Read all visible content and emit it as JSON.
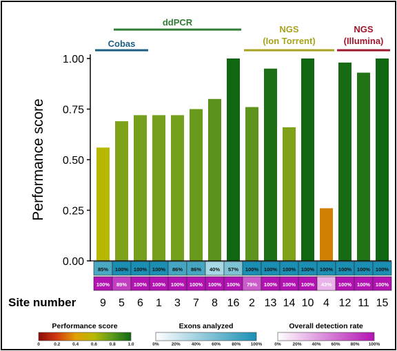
{
  "chart_data": {
    "type": "bar",
    "ylabel": "Performance score",
    "xlabel": "Site number",
    "ylim": [
      0,
      1.0
    ],
    "yticks": [
      "0.00",
      "0.25",
      "0.50",
      "0.75",
      "1.00"
    ],
    "ytick_values": [
      0,
      0.25,
      0.5,
      0.75,
      1.0
    ],
    "categories": [
      "9",
      "5",
      "6",
      "1",
      "3",
      "7",
      "8",
      "16",
      "2",
      "13",
      "14",
      "10",
      "4",
      "12",
      "11",
      "15"
    ],
    "values": [
      0.56,
      0.69,
      0.72,
      0.72,
      0.72,
      0.75,
      0.8,
      1.0,
      0.76,
      0.95,
      0.66,
      1.0,
      0.26,
      0.98,
      0.93,
      1.0
    ],
    "bar_colors": [
      "#b8b800",
      "#7fa21a",
      "#74a01c",
      "#74a01c",
      "#74a01c",
      "#6a9a1c",
      "#5b921c",
      "#0f6712",
      "#5f941c",
      "#1c6f14",
      "#7fa21a",
      "#0f6712",
      "#d08000",
      "#166b13",
      "#217316",
      "#0f6712"
    ],
    "exons_analyzed": [
      "85%",
      "100%",
      "100%",
      "100%",
      "86%",
      "86%",
      "40%",
      "57%",
      "100%",
      "100%",
      "100%",
      "100%",
      "100%",
      "100%",
      "100%",
      "100%"
    ],
    "exons_colors": [
      "#4aa8c3",
      "#1a8fb3",
      "#1a8fb3",
      "#1a8fb3",
      "#46a6c2",
      "#46a6c2",
      "#a6d8e6",
      "#7ec2d6",
      "#1a8fb3",
      "#1a8fb3",
      "#1a8fb3",
      "#1a8fb3",
      "#1a8fb3",
      "#1a8fb3",
      "#1a8fb3",
      "#1a8fb3"
    ],
    "detection_rate": [
      "100%",
      "89%",
      "100%",
      "100%",
      "100%",
      "100%",
      "100%",
      "100%",
      "79%",
      "100%",
      "100%",
      "100%",
      "43%",
      "100%",
      "100%",
      "100%"
    ],
    "detection_colors": [
      "#b313b3",
      "#c43ec4",
      "#b313b3",
      "#b313b3",
      "#b313b3",
      "#b313b3",
      "#b313b3",
      "#b313b3",
      "#cc5ccc",
      "#b313b3",
      "#b313b3",
      "#b313b3",
      "#eab3ea",
      "#b313b3",
      "#b313b3",
      "#b313b3"
    ],
    "groups": [
      {
        "label": "Cobas",
        "label2": "",
        "start": 0,
        "end": 2,
        "color": "#1b5e82"
      },
      {
        "label": "ddPCR",
        "label2": "",
        "start": 1,
        "end": 7,
        "color": "#2e7d32"
      },
      {
        "label": "NGS",
        "label2": "(Ion Torrent)",
        "start": 8,
        "end": 12,
        "color": "#a8a31c"
      },
      {
        "label": "NGS",
        "label2": "(Illumina)",
        "start": 13,
        "end": 15,
        "color": "#a0162d"
      }
    ],
    "legends": [
      {
        "title": "Performance score",
        "ticks": [
          "0",
          "0.2",
          "0.4",
          "0.6",
          "0.8",
          "1.0"
        ],
        "colors": [
          "#8b0a0a",
          "#d23a10",
          "#e0a000",
          "#b8b800",
          "#5a9a1c",
          "#0f6712"
        ]
      },
      {
        "title": "Exons analyzed",
        "ticks": [
          "0%",
          "20%",
          "40%",
          "60%",
          "80%",
          "100%"
        ],
        "colors": [
          "#ffffff",
          "#1a8fb3"
        ]
      },
      {
        "title": "Overall detection rate",
        "ticks": [
          "0%",
          "20%",
          "40%",
          "60%",
          "80%",
          "100%"
        ],
        "colors": [
          "#ffffff",
          "#b313b3"
        ]
      }
    ]
  }
}
